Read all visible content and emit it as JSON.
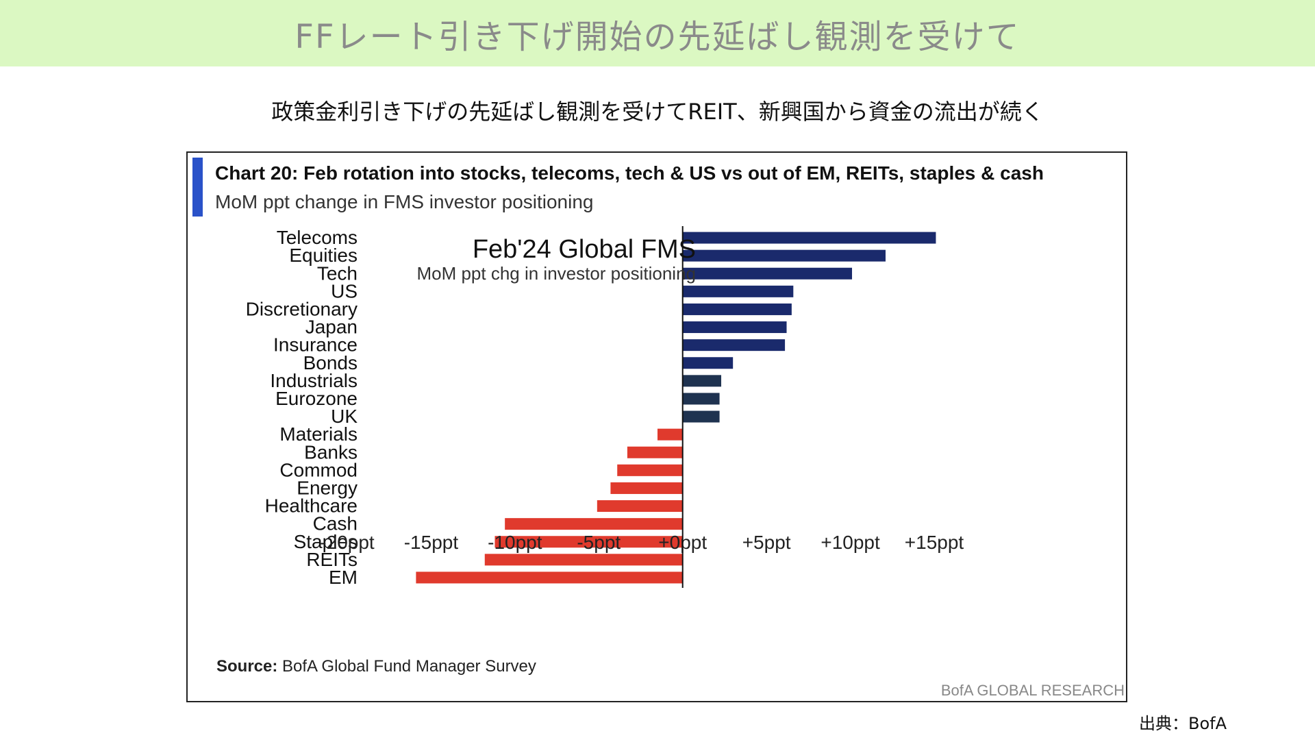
{
  "banner": {
    "title": "FFレート引き下げ開始の先延ばし観測を受けて"
  },
  "subtitle": "政策金利引き下げの先延ばし観測を受けてREIT、新興国から資金の流出が続く",
  "chart_header": {
    "title": "Chart 20: Feb rotation into stocks, telecoms, tech & US vs out of EM, REITs, staples & cash",
    "subtitle": "MoM ppt change in FMS investor positioning"
  },
  "inset": {
    "title": "Feb'24 Global FMS",
    "subtitle": "MoM ppt chg in investor positioning"
  },
  "source": {
    "label": "Source:",
    "text": "BofA Global Fund Manager Survey"
  },
  "brand": "BofA GLOBAL RESEARCH",
  "credit": "出典：BofA",
  "colors": {
    "positive": "#1a2a6c",
    "positive_dark": "#1f3350",
    "negative": "#e03a2d",
    "accent": "#2a52c9",
    "banner": "#dbf8c2"
  },
  "chart_data": {
    "type": "bar",
    "orientation": "horizontal",
    "title": "Chart 20: Feb rotation into stocks, telecoms, tech & US vs out of EM, REITs, staples & cash",
    "subtitle": "MoM ppt change in FMS investor positioning",
    "categories": [
      "Telecoms",
      "Equities",
      "Tech",
      "US",
      "Discretionary",
      "Japan",
      "Insurance",
      "Bonds",
      "Industrials",
      "Eurozone",
      "UK",
      "Materials",
      "Banks",
      "Commod",
      "Energy",
      "Healthcare",
      "Cash",
      "Staples",
      "REITs",
      "EM"
    ],
    "values": [
      15.1,
      12.1,
      10.1,
      6.6,
      6.5,
      6.2,
      6.1,
      3.0,
      2.3,
      2.2,
      2.2,
      -1.5,
      -3.3,
      -3.9,
      -4.3,
      -5.1,
      -10.6,
      -11.2,
      -11.8,
      -15.9
    ],
    "xlim": [
      -20,
      15
    ],
    "xticks": [
      -20,
      -15,
      -10,
      -5,
      0,
      5,
      10,
      15
    ],
    "xtick_labels": [
      "-20ppt",
      "-15ppt",
      "-10ppt",
      "-5ppt",
      "+0ppt",
      "+5ppt",
      "+10ppt",
      "+15ppt"
    ],
    "grid": false,
    "legend": "none"
  }
}
